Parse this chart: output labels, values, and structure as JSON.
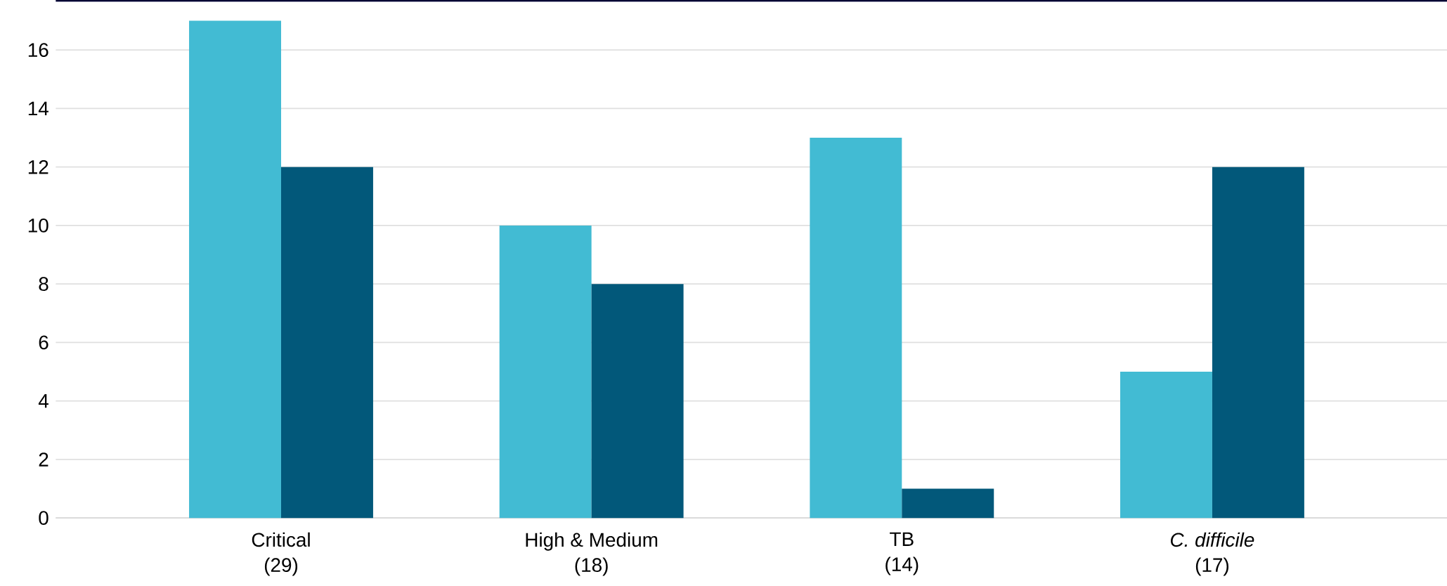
{
  "chart_data": {
    "type": "bar",
    "categories": [
      "Critical\n(29)",
      "High & Medium\n(18)",
      "TB\n(14)",
      "*C. difficile*\n(17)"
    ],
    "series": [
      {
        "color": "#42bbd3",
        "values": [
          17,
          10,
          13,
          5
        ]
      },
      {
        "color": "#02587a",
        "values": [
          12,
          8,
          1,
          12
        ]
      }
    ],
    "ylim": [
      0,
      17.7
    ],
    "yticks": [
      0,
      2,
      4,
      6,
      8,
      10,
      12,
      14,
      16
    ],
    "grid": "y"
  }
}
